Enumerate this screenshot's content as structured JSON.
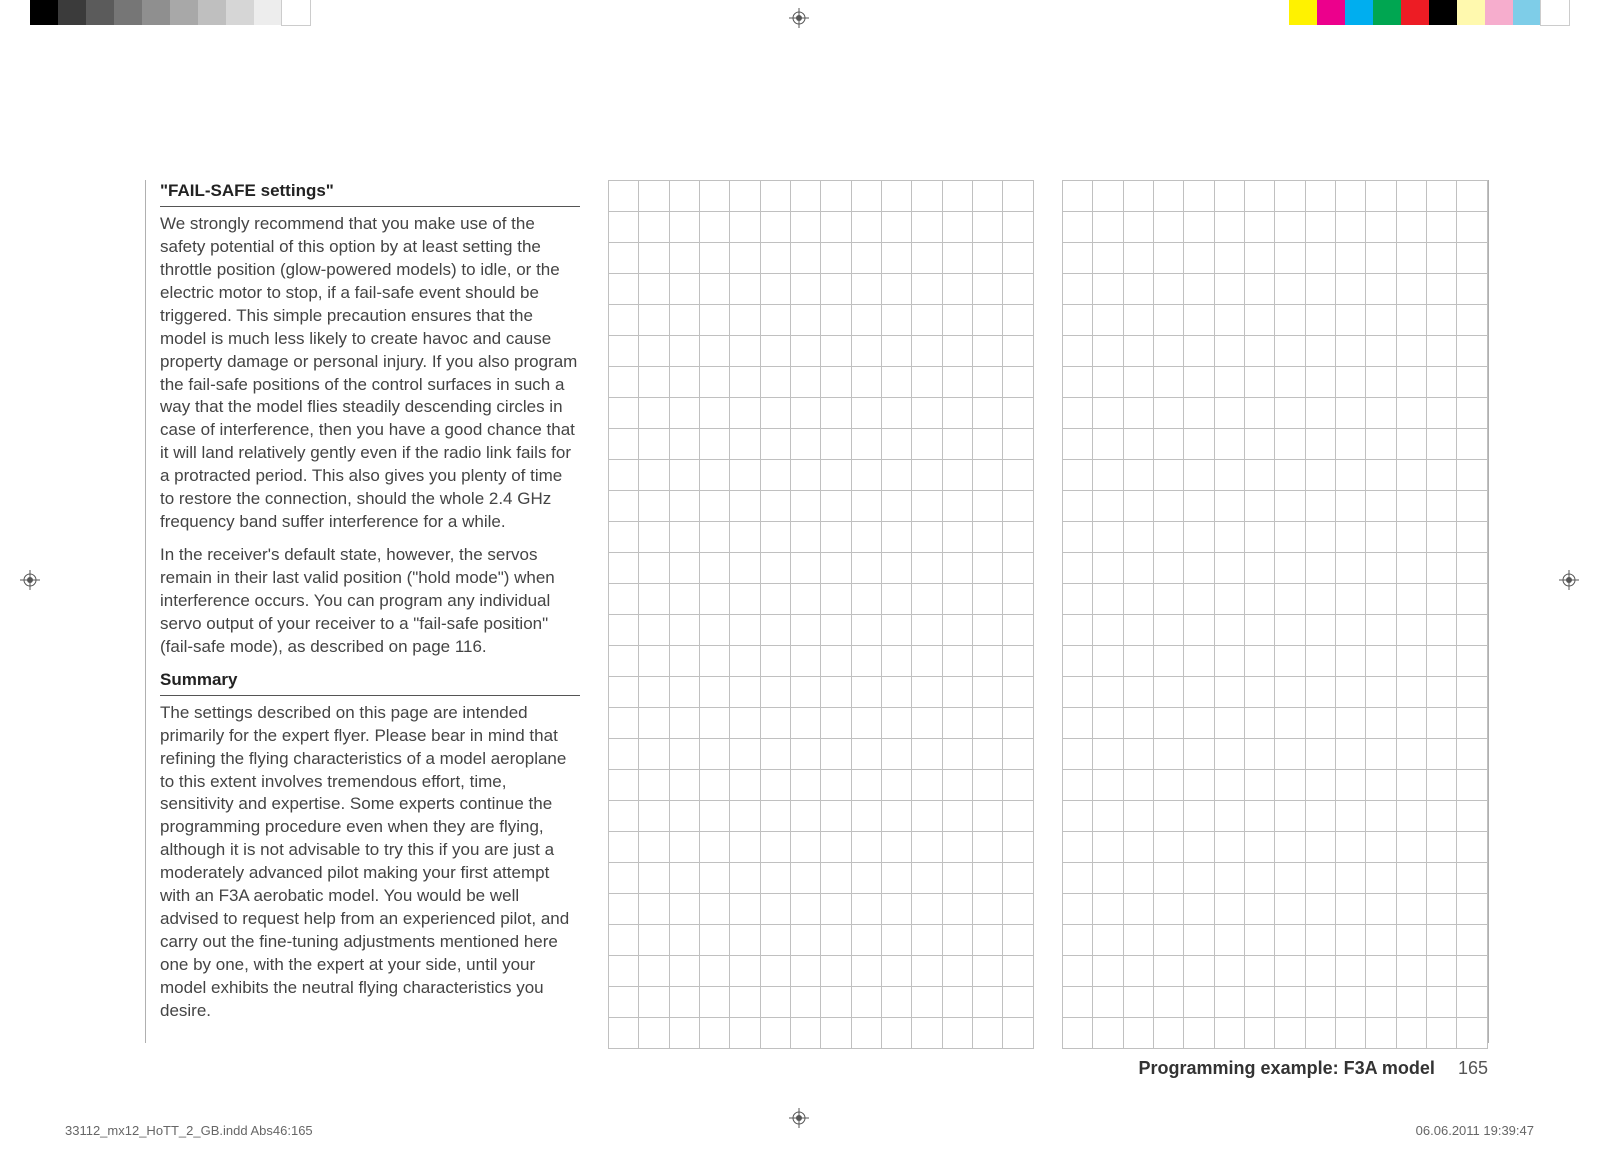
{
  "swatches_left": [
    "#000000",
    "#3b3b3b",
    "#5b5b5b",
    "#767676",
    "#8f8f8f",
    "#a8a8a8",
    "#bfbfbf",
    "#d6d6d6",
    "#ededed",
    "#ffffff"
  ],
  "swatches_right": [
    "#fff200",
    "#ec008c",
    "#00aeef",
    "#00a651",
    "#ed1c24",
    "#000000",
    "#fff9ae",
    "#f6adcd",
    "#7ecde8",
    "#ffffff"
  ],
  "grid": {
    "rows": 28,
    "cols": 14
  },
  "section1": {
    "title": "\"FAIL-SAFE settings\"",
    "p1": "We strongly recommend that you make use of the safety potential of this option by at least setting the throttle position (glow-powered models) to idle, or the electric motor to stop, if a fail-safe event should be triggered. This simple precaution ensures that the model is much less likely to create havoc and cause property damage or personal injury. If you also program the fail-safe positions of the control surfaces in such a way that the model flies steadily descending circles in case of interference, then you have a good chance that it will land relatively gently even if the radio link fails for a protracted period. This also gives you plenty of time to restore the connection, should the whole 2.4 GHz frequency band suffer interference for a while.",
    "p2": "In the receiver's default state, however, the servos remain in their last valid position (\"hold mode\") when interference occurs. You can program any individual servo output of your receiver to a \"fail-safe position\" (fail-safe mode), as described on page 116."
  },
  "section2": {
    "title": "Summary",
    "p1": "The settings described on this page are intended primarily for the expert flyer. Please bear in mind that refining the flying characteristics of a model aeroplane to this extent involves tremendous effort, time, sensitivity and expertise. Some experts continue the programming procedure even when they are flying, although it is not advisable to try this if you are just a moderately advanced pilot making your first attempt with an F3A aerobatic model. You would be well advised to request help from an experienced pilot, and carry out the fine-tuning adjustments mentioned here one by one, with the expert at your side, until your model exhibits the neutral flying characteristics you desire."
  },
  "footer": {
    "section_label": "Programming example: F3A model",
    "page_number": "165"
  },
  "meta": {
    "file": "33112_mx12_HoTT_2_GB.indd   Abs46:165",
    "date": "06.06.2011   19:39:47"
  }
}
